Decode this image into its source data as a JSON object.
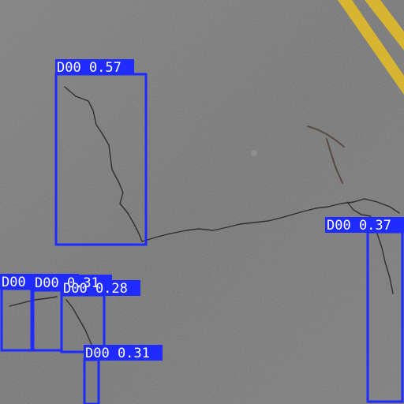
{
  "scene": {
    "subject": "asphalt road surface with cracks",
    "lane_marking_color": "#d8b530",
    "asphalt_color": "#6f6f6f",
    "box_color": "#1f2bff",
    "label_text_color": "#ffffff"
  },
  "detections": [
    {
      "id": "det-1",
      "label": "D00 0.57"
    },
    {
      "id": "det-2",
      "label": "D00 0.37"
    },
    {
      "id": "det-3",
      "label": "D00"
    },
    {
      "id": "det-4",
      "label": "D00 0.31"
    },
    {
      "id": "det-5",
      "label": "D00 0.28"
    },
    {
      "id": "det-6",
      "label": "D00 0.31"
    }
  ]
}
